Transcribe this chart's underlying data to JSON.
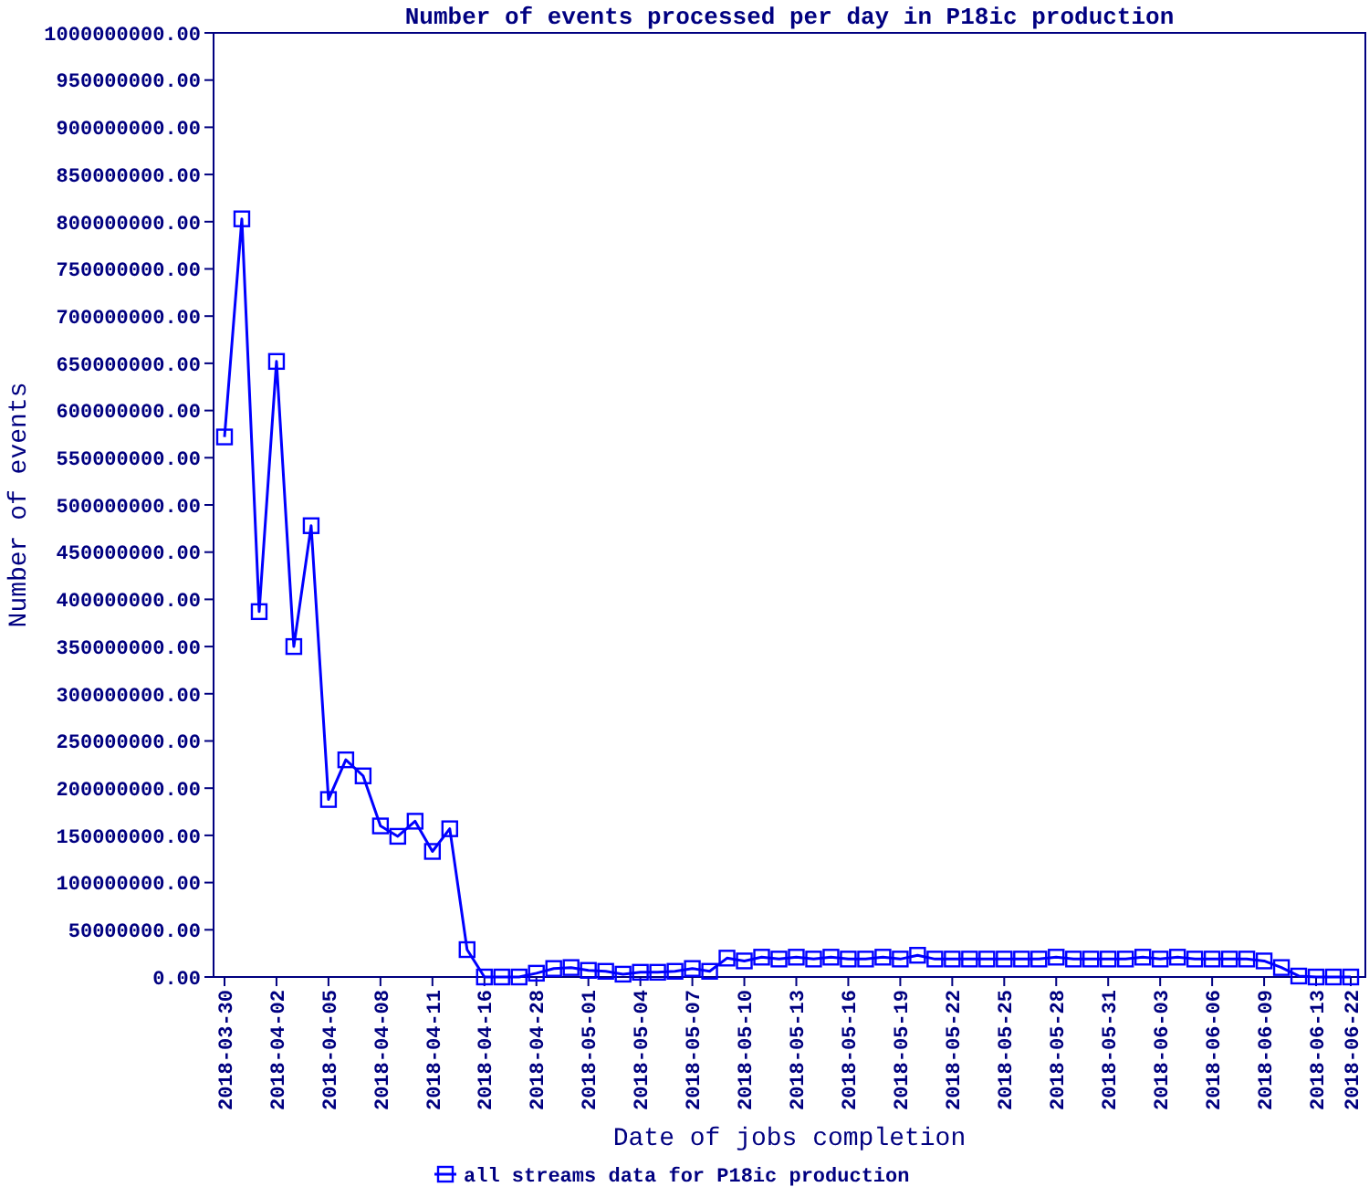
{
  "chart_data": {
    "type": "line",
    "title": "Number of events processed per day in P18ic production",
    "xlabel": "Date of jobs completion",
    "ylabel": "Number of events",
    "categories": [
      "2018-03-30",
      null,
      null,
      "2018-04-02",
      null,
      null,
      "2018-04-05",
      null,
      null,
      "2018-04-08",
      null,
      null,
      "2018-04-11",
      null,
      null,
      "2018-04-16",
      null,
      null,
      "2018-04-28",
      null,
      null,
      "2018-05-01",
      null,
      null,
      "2018-05-04",
      null,
      null,
      "2018-05-07",
      null,
      null,
      "2018-05-10",
      null,
      null,
      "2018-05-13",
      null,
      null,
      "2018-05-16",
      null,
      null,
      "2018-05-19",
      null,
      null,
      "2018-05-22",
      null,
      null,
      "2018-05-25",
      null,
      null,
      "2018-05-28",
      null,
      null,
      "2018-05-31",
      null,
      null,
      "2018-06-03",
      null,
      null,
      "2018-06-06",
      null,
      null,
      "2018-06-09",
      null,
      null,
      "2018-06-13",
      null,
      "2018-06-22"
    ],
    "series": [
      {
        "name": "all streams data for P18ic production",
        "color": "#0000ff",
        "values": [
          572000000,
          803000000,
          387000000,
          652000000,
          350000000,
          478000000,
          188000000,
          230000000,
          213000000,
          160000000,
          149000000,
          165000000,
          133000000,
          157000000,
          29000000,
          0,
          0,
          0,
          4000000,
          9000000,
          10000000,
          7000000,
          6000000,
          3000000,
          5000000,
          5000000,
          6000000,
          9000000,
          6000000,
          20000000,
          17000000,
          21000000,
          19000000,
          21000000,
          19000000,
          21000000,
          19000000,
          19000000,
          21000000,
          19000000,
          23000000,
          19000000,
          19000000,
          19000000,
          19000000,
          19000000,
          19000000,
          19000000,
          21000000,
          19000000,
          19000000,
          19000000,
          19000000,
          21000000,
          19000000,
          21000000,
          19000000,
          19000000,
          19000000,
          19000000,
          17000000,
          10000000,
          1000000,
          0,
          0,
          0
        ]
      }
    ],
    "ylim": [
      0,
      1000000000
    ],
    "yticks": [
      {
        "value": 0,
        "label": "0.00"
      },
      {
        "value": 50000000,
        "label": "50000000.00"
      },
      {
        "value": 100000000,
        "label": "100000000.00"
      },
      {
        "value": 150000000,
        "label": "150000000.00"
      },
      {
        "value": 200000000,
        "label": "200000000.00"
      },
      {
        "value": 250000000,
        "label": "250000000.00"
      },
      {
        "value": 300000000,
        "label": "300000000.00"
      },
      {
        "value": 350000000,
        "label": "350000000.00"
      },
      {
        "value": 400000000,
        "label": "400000000.00"
      },
      {
        "value": 450000000,
        "label": "450000000.00"
      },
      {
        "value": 500000000,
        "label": "500000000.00"
      },
      {
        "value": 550000000,
        "label": "550000000.00"
      },
      {
        "value": 600000000,
        "label": "600000000.00"
      },
      {
        "value": 650000000,
        "label": "650000000.00"
      },
      {
        "value": 700000000,
        "label": "700000000.00"
      },
      {
        "value": 750000000,
        "label": "750000000.00"
      },
      {
        "value": 800000000,
        "label": "800000000.00"
      },
      {
        "value": 850000000,
        "label": "850000000.00"
      },
      {
        "value": 900000000,
        "label": "900000000.00"
      },
      {
        "value": 950000000,
        "label": "950000000.00"
      },
      {
        "value": 1000000000,
        "label": "1000000000.00"
      }
    ],
    "grid": false,
    "legend": "bottom",
    "marker": "square",
    "line_style": "solid"
  }
}
